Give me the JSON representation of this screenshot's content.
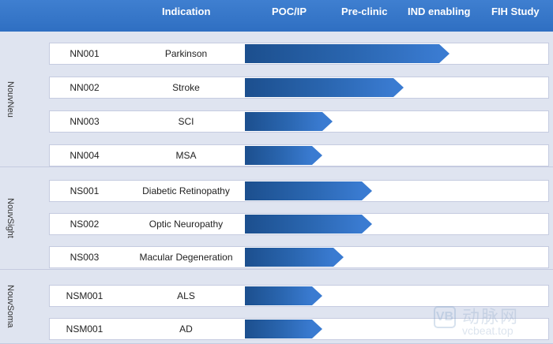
{
  "header": {
    "indication": "Indication",
    "poc": "POC/IP",
    "preclinic": "Pre-clinic",
    "ind_enabling": "IND enabling",
    "fih": "FIH Study",
    "color": "#2f6fc2"
  },
  "groups": [
    {
      "label": "NouvNeu",
      "rows": [
        {
          "code": "NN001",
          "indication": "Parkinson",
          "progress_pct": 100
        },
        {
          "code": "NN002",
          "indication": "Stroke",
          "progress_pct": 75
        },
        {
          "code": "NN003",
          "indication": "SCI",
          "progress_pct": 37
        },
        {
          "code": "NN004",
          "indication": "MSA",
          "progress_pct": 32
        }
      ]
    },
    {
      "label": "NouvSight",
      "rows": [
        {
          "code": "NS001",
          "indication": "Diabetic Retinopathy",
          "progress_pct": 58
        },
        {
          "code": "NS002",
          "indication": "Optic Neuropathy",
          "progress_pct": 58
        },
        {
          "code": "NS003",
          "indication": "Macular Degeneration",
          "progress_pct": 43
        }
      ]
    },
    {
      "label": "NouvSoma",
      "rows": [
        {
          "code": "NSM001",
          "indication": "ALS",
          "progress_pct": 32
        },
        {
          "code": "NSM001",
          "indication": "AD",
          "progress_pct": 32
        }
      ]
    }
  ],
  "watermark": {
    "chinese": "动脉网",
    "domain": "vcbeat.top",
    "logo": "VB"
  },
  "colors": {
    "group_bg": "#dfe4f0",
    "bar_dark": "#1c4f8e",
    "bar_light": "#3a7bd1"
  }
}
